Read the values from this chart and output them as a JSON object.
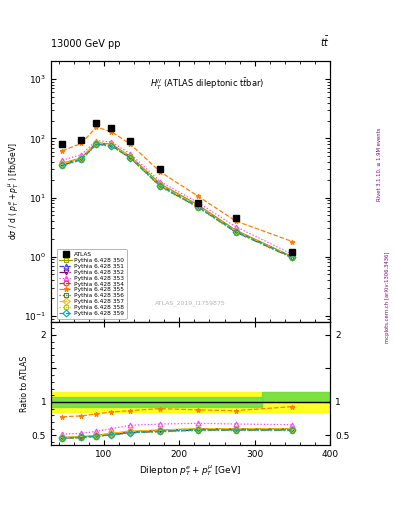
{
  "title_top": "13000 GeV pp",
  "title_top_right": "tt",
  "plot_title": "$H_T^{ll}$ (ATLAS dileptonic t$\\bar{t}$bar)",
  "xlabel": "Dilepton $p_T^e + p_T^{\\mu}$ [GeV]",
  "ylabel_main": "d$\\sigma$ / d ( $p_T^e + p_T^{\\mu}$ ) [fb/GeV]",
  "ylabel_ratio": "Ratio to ATLAS",
  "right_label": "Rivet 3.1.10, ≥ 1.9M events",
  "right_label2": "mcplots.cern.ch [arXiv:1306.3436]",
  "watermark": "ATLAS_2019_I1759875",
  "x_centers": [
    45,
    70,
    90,
    110,
    135,
    175,
    225,
    275,
    350
  ],
  "atlas_y": [
    80,
    95,
    180,
    150,
    90,
    30,
    8.0,
    4.5,
    1.2
  ],
  "pythia_350_y": [
    38,
    47,
    85,
    80,
    50,
    17,
    7.5,
    2.8,
    1.0
  ],
  "pythia_351_y": [
    36,
    45,
    82,
    77,
    48,
    16,
    7.0,
    2.7,
    0.98
  ],
  "pythia_352_y": [
    35,
    44,
    80,
    75,
    47,
    15.5,
    6.9,
    2.6,
    0.96
  ],
  "pythia_353_y": [
    43,
    53,
    92,
    87,
    55,
    18.5,
    8.2,
    3.2,
    1.1
  ],
  "pythia_354_y": [
    36,
    45,
    82,
    77,
    48,
    16,
    7.0,
    2.7,
    0.98
  ],
  "pythia_355_y": [
    62,
    82,
    155,
    130,
    80,
    27,
    10.5,
    4.0,
    1.8
  ],
  "pythia_356_y": [
    35,
    44,
    80,
    75,
    47,
    15.5,
    6.9,
    2.65,
    0.97
  ],
  "pythia_357_y": [
    37,
    46,
    83,
    78,
    49,
    16,
    7.1,
    2.7,
    0.99
  ],
  "pythia_358_y": [
    34,
    43,
    78,
    73,
    46,
    15,
    6.7,
    2.55,
    0.94
  ],
  "pythia_359_y": [
    35,
    44,
    80,
    75,
    47,
    15.5,
    6.9,
    2.65,
    0.97
  ],
  "ratio_350": [
    0.47,
    0.48,
    0.5,
    0.53,
    0.56,
    0.58,
    0.6,
    0.6,
    0.6
  ],
  "ratio_351": [
    0.46,
    0.47,
    0.49,
    0.52,
    0.55,
    0.57,
    0.59,
    0.59,
    0.59
  ],
  "ratio_352": [
    0.46,
    0.47,
    0.49,
    0.51,
    0.54,
    0.56,
    0.58,
    0.58,
    0.58
  ],
  "ratio_353": [
    0.52,
    0.53,
    0.56,
    0.6,
    0.65,
    0.67,
    0.68,
    0.67,
    0.66
  ],
  "ratio_354": [
    0.46,
    0.47,
    0.49,
    0.52,
    0.55,
    0.57,
    0.59,
    0.59,
    0.59
  ],
  "ratio_355": [
    0.78,
    0.79,
    0.82,
    0.85,
    0.87,
    0.9,
    0.88,
    0.87,
    0.93
  ],
  "ratio_356": [
    0.46,
    0.47,
    0.48,
    0.51,
    0.54,
    0.56,
    0.58,
    0.58,
    0.58
  ],
  "ratio_357": [
    0.47,
    0.48,
    0.5,
    0.53,
    0.56,
    0.58,
    0.6,
    0.6,
    0.6
  ],
  "ratio_358": [
    0.45,
    0.46,
    0.48,
    0.51,
    0.54,
    0.55,
    0.57,
    0.57,
    0.57
  ],
  "ratio_359": [
    0.46,
    0.47,
    0.49,
    0.51,
    0.54,
    0.56,
    0.58,
    0.58,
    0.58
  ],
  "color_350": "#a0a000",
  "color_351": "#4040dd",
  "color_352": "#800080",
  "color_353": "#ff40ff",
  "color_354": "#dd3030",
  "color_355": "#ff8000",
  "color_356": "#508020",
  "color_357": "#ffbb00",
  "color_358": "#b8cc00",
  "color_359": "#00aaaa",
  "xlim": [
    30,
    400
  ],
  "ylim_main": [
    0.08,
    2000
  ],
  "ylim_ratio": [
    0.35,
    2.2
  ]
}
